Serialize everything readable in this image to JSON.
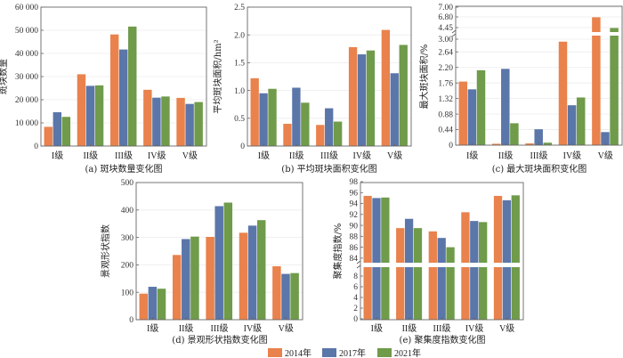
{
  "colors": {
    "2014": "#e9824c",
    "2017": "#5b76a9",
    "2021": "#6f9b4a"
  },
  "legend": [
    "2014年",
    "2017年",
    "2021年"
  ],
  "chart_data": [
    {
      "type": "bar",
      "caption": "(a) 斑块数量变化图",
      "ylabel": "斑块数量",
      "categories": [
        "I级",
        "II级",
        "III级",
        "IV级",
        "V级"
      ],
      "ylim": [
        0,
        60000
      ],
      "yticks": [
        [
          0,
          "0"
        ],
        [
          10000,
          "10 000"
        ],
        [
          20000,
          "20 000"
        ],
        [
          30000,
          "30 000"
        ],
        [
          40000,
          "40 000"
        ],
        [
          50000,
          "50 000"
        ],
        [
          60000,
          "60 000"
        ]
      ],
      "grid": true,
      "series": [
        {
          "name": "2014年",
          "values": [
            8300,
            31000,
            48200,
            24300,
            20800
          ]
        },
        {
          "name": "2017年",
          "values": [
            14600,
            26000,
            41700,
            20900,
            18200
          ]
        },
        {
          "name": "2021年",
          "values": [
            12600,
            26200,
            51600,
            21400,
            19000
          ]
        }
      ]
    },
    {
      "type": "bar",
      "caption": "(b) 平均斑块面积变化图",
      "ylabel": "平均斑块面积/hm²",
      "categories": [
        "I级",
        "II级",
        "III级",
        "IV级",
        "V级"
      ],
      "ylim": [
        0,
        2.5
      ],
      "yticks": [
        [
          0,
          "0"
        ],
        [
          0.5,
          "0.5"
        ],
        [
          1.0,
          "1.0"
        ],
        [
          1.5,
          "1.5"
        ],
        [
          2.0,
          "2.0"
        ],
        [
          2.5,
          "2.5"
        ]
      ],
      "grid": true,
      "series": [
        {
          "name": "2014年",
          "values": [
            1.22,
            0.4,
            0.38,
            1.78,
            2.09
          ]
        },
        {
          "name": "2017年",
          "values": [
            0.95,
            1.05,
            0.68,
            1.65,
            1.31
          ]
        },
        {
          "name": "2021年",
          "values": [
            1.03,
            0.78,
            0.44,
            1.72,
            1.82
          ]
        }
      ]
    },
    {
      "type": "bar",
      "caption": "(c) 最大斑块面积变化图",
      "ylabel": "最大斑块面积/%",
      "categories": [
        "I级",
        "II级",
        "III级",
        "IV级",
        "V级"
      ],
      "ylim": [
        0,
        7.0
      ],
      "y_break": [
        3.0,
        4.45
      ],
      "yticks": [
        [
          0,
          "0"
        ],
        [
          0.44,
          "0.44"
        ],
        [
          0.88,
          "0.88"
        ],
        [
          1.32,
          "1.32"
        ],
        [
          1.76,
          "1.76"
        ],
        [
          2.2,
          "2.20"
        ],
        [
          2.64,
          "2.64"
        ],
        [
          3.0,
          "3.00"
        ],
        [
          4.45,
          "4.45"
        ],
        [
          6.8,
          "6.80"
        ],
        [
          7.0,
          "7.00"
        ]
      ],
      "grid": true,
      "series": [
        {
          "name": "2014年",
          "values": [
            1.8,
            0.04,
            0.05,
            2.93,
            6.72
          ]
        },
        {
          "name": "2017年",
          "values": [
            1.58,
            2.16,
            0.45,
            1.13,
            0.37
          ]
        },
        {
          "name": "2021年",
          "values": [
            2.12,
            0.62,
            0.07,
            1.35,
            4.4
          ]
        }
      ]
    },
    {
      "type": "bar",
      "caption": "(d) 景观形状指数变化图",
      "ylabel": "景观形状指数",
      "categories": [
        "I级",
        "II级",
        "III级",
        "IV级",
        "V级"
      ],
      "ylim": [
        0,
        500
      ],
      "yticks": [
        [
          0,
          "0"
        ],
        [
          100,
          "100"
        ],
        [
          200,
          "200"
        ],
        [
          300,
          "300"
        ],
        [
          400,
          "400"
        ],
        [
          500,
          "500"
        ]
      ],
      "grid": true,
      "series": [
        {
          "name": "2014年",
          "values": [
            95,
            236,
            302,
            317,
            195
          ]
        },
        {
          "name": "2017年",
          "values": [
            120,
            294,
            414,
            343,
            167
          ]
        },
        {
          "name": "2021年",
          "values": [
            113,
            303,
            427,
            363,
            170
          ]
        }
      ]
    },
    {
      "type": "bar",
      "caption": "(e) 聚集度指数变化图",
      "ylabel": "聚集度指数/%",
      "categories": [
        "I级",
        "II级",
        "III级",
        "IV级",
        "V级"
      ],
      "ylim": [
        0,
        98
      ],
      "y_break": [
        8,
        84
      ],
      "yticks": [
        [
          0,
          "0"
        ],
        [
          2,
          "2"
        ],
        [
          4,
          "4"
        ],
        [
          6,
          "6"
        ],
        [
          8,
          "8"
        ],
        [
          84,
          "84"
        ],
        [
          86,
          "86"
        ],
        [
          88,
          "88"
        ],
        [
          90,
          "90"
        ],
        [
          92,
          "92"
        ],
        [
          94,
          "94"
        ],
        [
          96,
          "96"
        ],
        [
          98,
          "98"
        ]
      ],
      "grid": false,
      "series": [
        {
          "name": "2014年",
          "values": [
            95.4,
            89.5,
            88.9,
            92.4,
            95.4
          ]
        },
        {
          "name": "2017年",
          "values": [
            95.0,
            91.2,
            87.7,
            90.8,
            94.6
          ]
        },
        {
          "name": "2021年",
          "values": [
            95.1,
            89.5,
            86.0,
            90.6,
            95.5
          ]
        }
      ]
    }
  ]
}
